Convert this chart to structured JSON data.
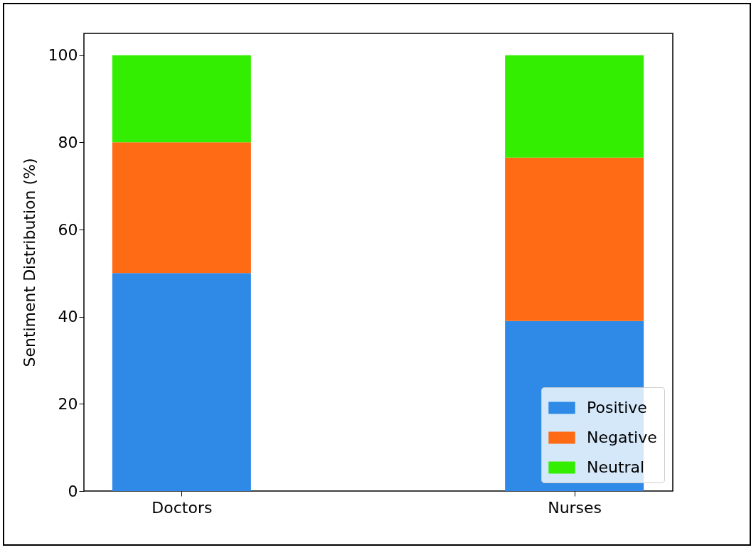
{
  "chart_data": {
    "type": "bar",
    "stacked": true,
    "ylabel": "Sentiment Distribution (%)",
    "categories": [
      "Doctors",
      "Nurses"
    ],
    "series": [
      {
        "name": "Positive",
        "color": "#2e8ae6",
        "values": [
          50,
          39
        ]
      },
      {
        "name": "Negative",
        "color": "#ff6a14",
        "values": [
          30,
          37.5
        ]
      },
      {
        "name": "Neutral",
        "color": "#33ee00",
        "values": [
          20,
          23.5
        ]
      }
    ],
    "ylim": [
      0,
      105
    ],
    "yticks": [
      0,
      20,
      40,
      60,
      80,
      100
    ],
    "grid": false,
    "legend": "bottom right"
  }
}
